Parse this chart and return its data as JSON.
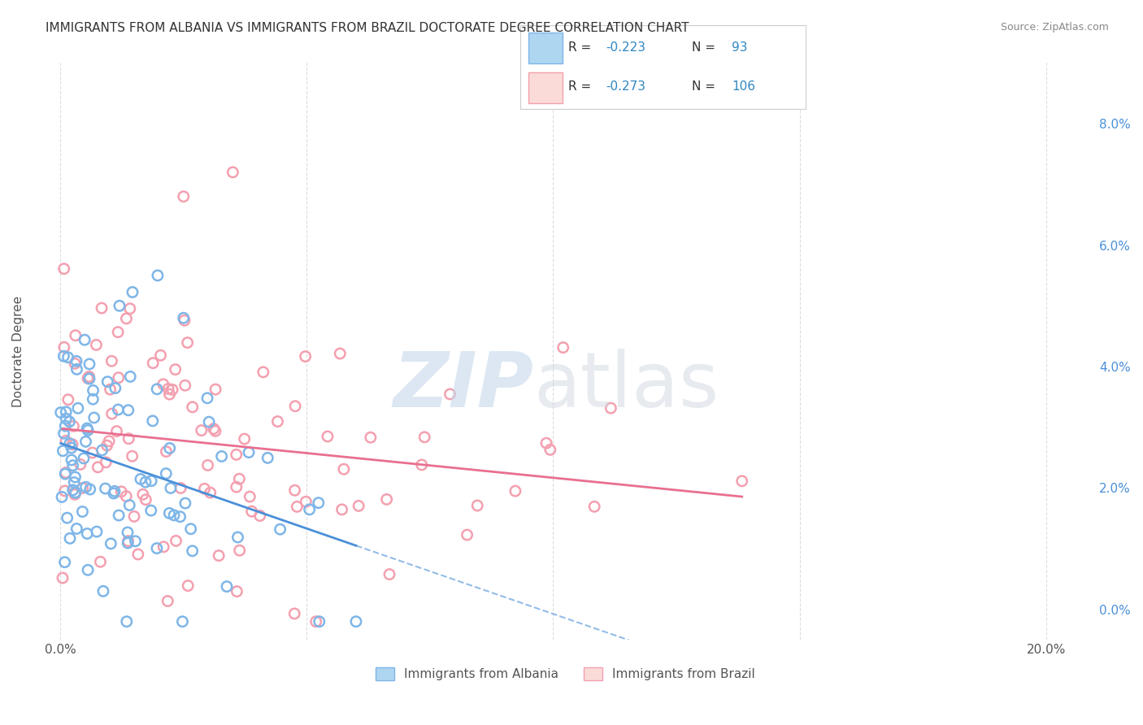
{
  "title": "IMMIGRANTS FROM ALBANIA VS IMMIGRANTS FROM BRAZIL DOCTORATE DEGREE CORRELATION CHART",
  "source": "Source: ZipAtlas.com",
  "ylabel": "Doctorate Degree",
  "ytick_values": [
    0.0,
    2.0,
    4.0,
    6.0,
    8.0
  ],
  "xtick_values": [
    0.0,
    5.0,
    10.0,
    15.0,
    20.0
  ],
  "xlim": [
    -0.5,
    21.0
  ],
  "ylim": [
    -0.5,
    9.0
  ],
  "albania_color": "#7EB6E8",
  "brazil_color": "#F4A0B0",
  "albania_line_color": "#4A90D9",
  "brazil_line_color": "#E87090",
  "albania_R": -0.223,
  "albania_N": 93,
  "brazil_R": -0.273,
  "brazil_N": 106,
  "legend_label_albania": "Immigrants from Albania",
  "legend_label_brazil": "Immigrants from Brazil",
  "background_color": "#ffffff",
  "grid_color": "#dddddd"
}
